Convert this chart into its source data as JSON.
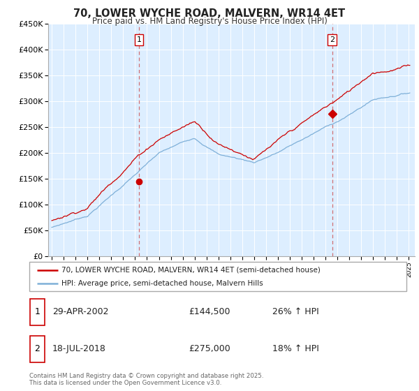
{
  "title": "70, LOWER WYCHE ROAD, MALVERN, WR14 4ET",
  "subtitle": "Price paid vs. HM Land Registry's House Price Index (HPI)",
  "legend_line1": "70, LOWER WYCHE ROAD, MALVERN, WR14 4ET (semi-detached house)",
  "legend_line2": "HPI: Average price, semi-detached house, Malvern Hills",
  "red_color": "#cc0000",
  "blue_color": "#7fb0d8",
  "marker1": {
    "date_num": 2002.33,
    "value": 144500,
    "label": "1",
    "date_str": "29-APR-2002",
    "price": "£144,500",
    "change": "26% ↑ HPI"
  },
  "marker2": {
    "date_num": 2018.55,
    "value": 275000,
    "label": "2",
    "date_str": "18-JUL-2018",
    "price": "£275,000",
    "change": "18% ↑ HPI"
  },
  "vline1_x": 2002.33,
  "vline2_x": 2018.55,
  "ylim": [
    0,
    450000
  ],
  "xlim_start": 1994.7,
  "xlim_end": 2025.5,
  "footer": "Contains HM Land Registry data © Crown copyright and database right 2025.\nThis data is licensed under the Open Government Licence v3.0.",
  "bg_chart": "#ddeeff",
  "background_color": "#ffffff",
  "grid_color": "#ffffff"
}
